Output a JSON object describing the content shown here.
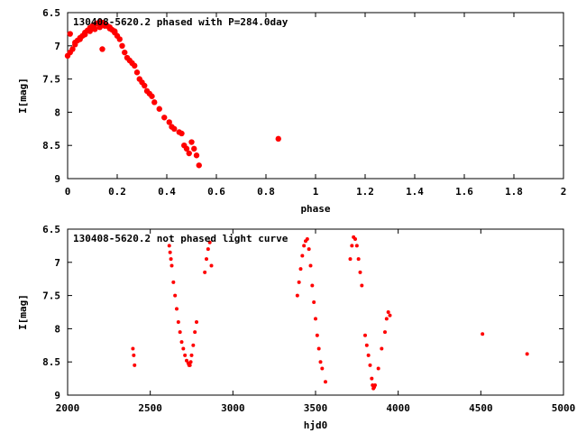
{
  "chart_data": [
    {
      "type": "scatter",
      "title": "130408-5620.2 phased with P=284.0day",
      "xlabel": "phase",
      "ylabel": "I[mag]",
      "xlim": [
        0,
        2
      ],
      "ylim": [
        6.5,
        9
      ],
      "y_inverted": true,
      "grid": false,
      "marker_color": "#ff0000",
      "xticks": [
        "0",
        "0.2",
        "0.4",
        "0.6",
        "0.8",
        "1",
        "1.2",
        "1.4",
        "1.6",
        "1.8",
        "2"
      ],
      "yticks": [
        "6.5",
        "7",
        "7.5",
        "8",
        "8.5",
        "9"
      ],
      "series": [
        {
          "x": [
            0.0,
            0.01,
            0.02,
            0.03,
            0.04,
            0.05,
            0.06,
            0.07,
            0.08,
            0.09,
            0.1,
            0.11,
            0.12,
            0.13,
            0.14,
            0.15,
            0.16,
            0.17,
            0.18,
            0.19,
            0.2,
            0.01,
            0.03,
            0.05,
            0.07,
            0.09,
            0.11,
            0.13,
            0.15,
            0.17,
            0.19,
            0.21,
            0.22,
            0.23,
            0.24,
            0.25,
            0.26,
            0.27,
            0.28,
            0.29,
            0.3,
            0.31,
            0.32,
            0.33,
            0.34,
            0.35,
            0.37,
            0.39,
            0.41,
            0.42,
            0.43,
            0.45,
            0.46,
            0.47,
            0.48,
            0.49,
            0.5,
            0.51,
            0.52,
            0.53,
            0.85,
            0.14
          ],
          "y": [
            7.15,
            7.1,
            7.05,
            6.98,
            6.92,
            6.88,
            6.85,
            6.8,
            6.77,
            6.73,
            6.7,
            6.68,
            6.66,
            6.64,
            6.65,
            6.68,
            6.7,
            6.72,
            6.76,
            6.8,
            6.85,
            6.82,
            6.95,
            6.9,
            6.83,
            6.78,
            6.75,
            6.72,
            6.7,
            6.74,
            6.78,
            6.9,
            7.0,
            7.1,
            7.18,
            7.22,
            7.26,
            7.3,
            7.4,
            7.5,
            7.55,
            7.6,
            7.68,
            7.72,
            7.76,
            7.85,
            7.95,
            8.08,
            8.15,
            8.22,
            8.25,
            8.3,
            8.32,
            8.5,
            8.55,
            8.62,
            8.45,
            8.55,
            8.65,
            8.8,
            8.4,
            7.05
          ]
        }
      ]
    },
    {
      "type": "scatter",
      "title": "130408-5620.2 not phased light curve",
      "xlabel": "hjd0",
      "ylabel": "I[mag]",
      "xlim": [
        2000,
        5000
      ],
      "ylim": [
        6.5,
        9
      ],
      "y_inverted": true,
      "grid": false,
      "marker_color": "#ff0000",
      "xticks": [
        "2000",
        "2500",
        "3000",
        "3500",
        "4000",
        "4500",
        "5000"
      ],
      "yticks": [
        "6.5",
        "7",
        "7.5",
        "8",
        "8.5",
        "9"
      ],
      "series": [
        {
          "x": [
            2395,
            2400,
            2405,
            2615,
            2620,
            2625,
            2630,
            2640,
            2650,
            2660,
            2670,
            2680,
            2690,
            2700,
            2710,
            2720,
            2730,
            2735,
            2740,
            2745,
            2750,
            2760,
            2770,
            2780,
            2830,
            2840,
            2850,
            2860,
            2870,
            3390,
            3400,
            3410,
            3420,
            3430,
            3440,
            3450,
            3460,
            3470,
            3480,
            3490,
            3500,
            3510,
            3520,
            3530,
            3540,
            3560,
            3710,
            3720,
            3730,
            3740,
            3750,
            3760,
            3770,
            3780,
            3800,
            3810,
            3820,
            3830,
            3840,
            3845,
            3850,
            3855,
            3860,
            3880,
            3900,
            3920,
            3930,
            3940,
            3950,
            4510,
            4780
          ],
          "y": [
            8.3,
            8.4,
            8.55,
            6.75,
            6.85,
            6.95,
            7.05,
            7.3,
            7.5,
            7.7,
            7.9,
            8.05,
            8.2,
            8.3,
            8.4,
            8.48,
            8.52,
            8.55,
            8.55,
            8.5,
            8.4,
            8.25,
            8.05,
            7.9,
            7.15,
            6.95,
            6.8,
            6.7,
            7.05,
            7.5,
            7.3,
            7.1,
            6.9,
            6.75,
            6.68,
            6.65,
            6.8,
            7.05,
            7.35,
            7.6,
            7.85,
            8.1,
            8.3,
            8.5,
            8.6,
            8.8,
            6.95,
            6.75,
            6.62,
            6.65,
            6.75,
            6.95,
            7.15,
            7.35,
            8.1,
            8.25,
            8.4,
            8.55,
            8.75,
            8.85,
            8.9,
            8.88,
            8.85,
            8.6,
            8.3,
            8.05,
            7.85,
            7.75,
            7.8,
            8.08,
            8.38
          ]
        }
      ]
    }
  ]
}
